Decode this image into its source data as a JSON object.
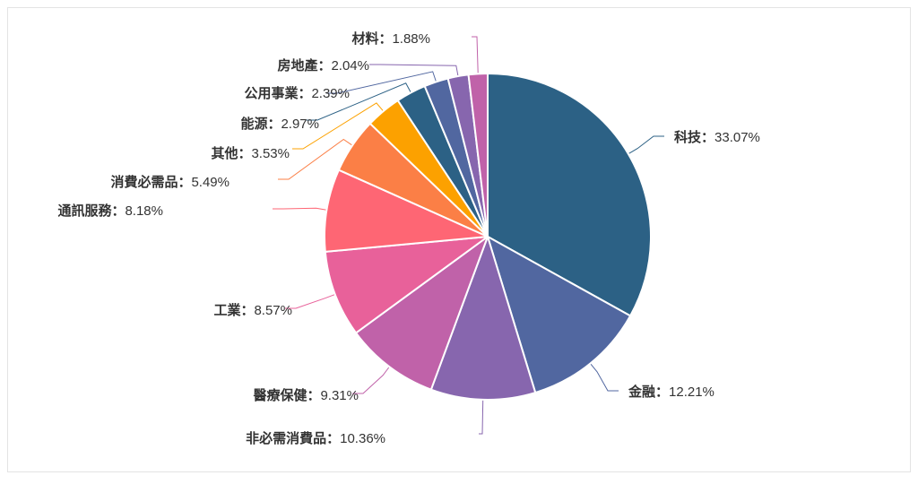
{
  "chart_data": {
    "type": "pie",
    "title": "",
    "legend": "none",
    "separator": "：",
    "slices": [
      {
        "label": "科技",
        "value": 33.07,
        "display": "33.07%",
        "color": "#2c6185"
      },
      {
        "label": "金融",
        "value": 12.21,
        "display": "12.21%",
        "color": "#5167a0"
      },
      {
        "label": "非必需消費品",
        "value": 10.36,
        "display": "10.36%",
        "color": "#8766ae"
      },
      {
        "label": "醫療保健",
        "value": 9.31,
        "display": "9.31%",
        "color": "#c062a9"
      },
      {
        "label": "工業",
        "value": 8.57,
        "display": "8.57%",
        "color": "#e8619a"
      },
      {
        "label": "通訊服務",
        "value": 8.18,
        "display": "8.18%",
        "color": "#fe6674"
      },
      {
        "label": "消費必需品",
        "value": 5.49,
        "display": "5.49%",
        "color": "#fb7f46"
      },
      {
        "label": "其他",
        "value": 3.53,
        "display": "3.53%",
        "color": "#fca100"
      },
      {
        "label": "能源",
        "value": 2.97,
        "display": "2.97%",
        "color": "#2c6185"
      },
      {
        "label": "公用事業",
        "value": 2.39,
        "display": "2.39%",
        "color": "#5167a0"
      },
      {
        "label": "房地產",
        "value": 2.04,
        "display": "2.04%",
        "color": "#8766ae"
      },
      {
        "label": "材料",
        "value": 1.88,
        "display": "1.88%",
        "color": "#c062a9"
      }
    ]
  }
}
